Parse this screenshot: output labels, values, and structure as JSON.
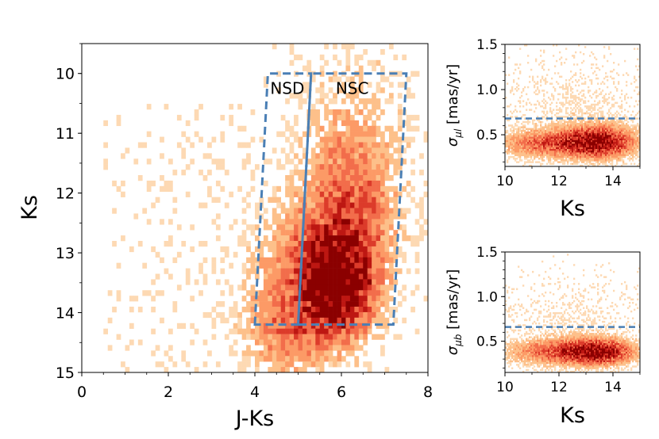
{
  "chart_data": [
    {
      "id": "main",
      "type": "heatmap",
      "title": "",
      "xlabel": "J-Ks",
      "ylabel": "Ks",
      "xlim": [
        0,
        8
      ],
      "ylim": [
        15,
        9.5
      ],
      "xticks": [
        "0",
        "2",
        "4",
        "6",
        "8"
      ],
      "yticks": [
        "10",
        "11",
        "12",
        "13",
        "14",
        "15"
      ],
      "colormap": "OrRd (light orange to dark red)",
      "density": {
        "comment": "2D histogram of stars; density centers in data units",
        "blobs": [
          {
            "x": 5.9,
            "y": 13.6,
            "sx": 0.55,
            "sy": 0.55,
            "w": 1.0
          },
          {
            "x": 6.2,
            "y": 12.6,
            "sx": 0.75,
            "sy": 1.0,
            "w": 0.55
          },
          {
            "x": 5.0,
            "y": 13.5,
            "sx": 0.9,
            "sy": 0.9,
            "w": 0.45
          },
          {
            "x": 6.3,
            "y": 11.0,
            "sx": 0.9,
            "sy": 1.2,
            "w": 0.25
          },
          {
            "x": 4.6,
            "y": 14.5,
            "sx": 0.6,
            "sy": 0.5,
            "w": 0.3
          }
        ],
        "sparse_region": {
          "x": [
            0.5,
            4.0
          ],
          "y": [
            10.5,
            15.0
          ]
        }
      },
      "regions": [
        {
          "label": "NSD",
          "polygon": [
            [
              4.0,
              14.2
            ],
            [
              4.3,
              10.0
            ],
            [
              5.3,
              10.0
            ],
            [
              5.0,
              14.2
            ]
          ],
          "color": "#4a7fb5",
          "style": "dashed"
        },
        {
          "label": "NSC",
          "polygon": [
            [
              5.0,
              14.2
            ],
            [
              5.3,
              10.0
            ],
            [
              7.5,
              10.0
            ],
            [
              7.2,
              14.2
            ]
          ],
          "color": "#4a7fb5",
          "style": "dashed"
        }
      ]
    },
    {
      "id": "top-right",
      "type": "heatmap",
      "xlabel": "Ks",
      "ylabel": "σ_μl [mas/yr]",
      "ylabel_main": "σ",
      "ylabel_sub": "μl",
      "ylabel_rest": " [mas/yr]",
      "xlim": [
        10,
        15
      ],
      "ylim": [
        0.15,
        1.5
      ],
      "xticks": [
        "10",
        "12",
        "14"
      ],
      "yticks": [
        "0.5",
        "1.0",
        "1.5"
      ],
      "threshold": 0.68,
      "density": {
        "blobs": [
          {
            "x": 13.5,
            "y": 0.42,
            "sx": 0.9,
            "sy": 0.12,
            "w": 1.0
          },
          {
            "x": 11.5,
            "y": 0.4,
            "sx": 1.2,
            "sy": 0.1,
            "w": 0.6
          },
          {
            "x": 12.5,
            "y": 0.75,
            "sx": 1.8,
            "sy": 0.35,
            "w": 0.12
          }
        ]
      }
    },
    {
      "id": "bottom-right",
      "type": "heatmap",
      "xlabel": "Ks",
      "ylabel": "σ_μb [mas/yr]",
      "ylabel_main": "σ",
      "ylabel_sub": "μb",
      "ylabel_rest": " [mas/yr]",
      "xlim": [
        10,
        15
      ],
      "ylim": [
        0.15,
        1.5
      ],
      "xticks": [
        "10",
        "12",
        "14"
      ],
      "yticks": [
        "0.5",
        "1.0",
        "1.5"
      ],
      "threshold": 0.66,
      "density": {
        "blobs": [
          {
            "x": 13.5,
            "y": 0.38,
            "sx": 0.9,
            "sy": 0.1,
            "w": 1.0
          },
          {
            "x": 11.7,
            "y": 0.38,
            "sx": 1.2,
            "sy": 0.1,
            "w": 0.55
          },
          {
            "x": 12.5,
            "y": 0.72,
            "sx": 1.6,
            "sy": 0.3,
            "w": 0.1
          }
        ]
      }
    }
  ],
  "colors": {
    "dashed": "#4a7fb5",
    "ramp": [
      "#fdd9b3",
      "#fdc08a",
      "#fc9a66",
      "#f26d4b",
      "#dc3b2a",
      "#bd1712",
      "#8b0000"
    ]
  }
}
